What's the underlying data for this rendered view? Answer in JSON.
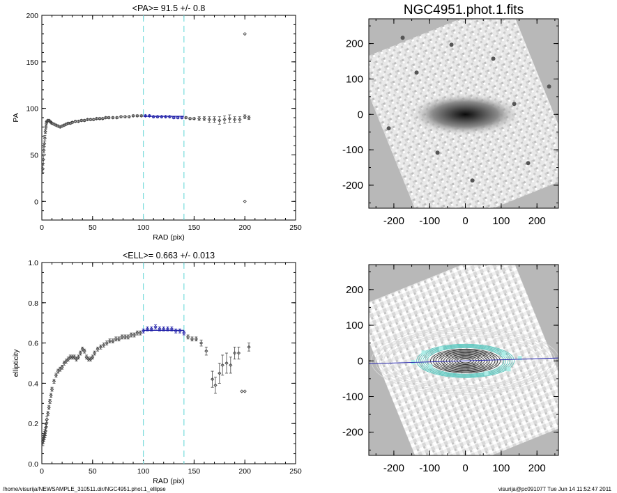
{
  "chart_data": [
    {
      "type": "scatter",
      "title": "<PA>=  91.5 +/-   0.8",
      "xlabel": "RAD (pix)",
      "ylabel": "PA",
      "xlim": [
        0,
        250
      ],
      "ylim": [
        -20,
        200
      ],
      "xticks": [
        0,
        50,
        100,
        150,
        200,
        250
      ],
      "yticks": [
        0,
        50,
        100,
        150,
        200
      ],
      "vlines": [
        100,
        140
      ],
      "fit_line": {
        "x": [
          100,
          140
        ],
        "y": [
          91.5,
          91.5
        ]
      },
      "series": [
        {
          "x": [
            1,
            1.5,
            2,
            2.5,
            3,
            3.5,
            4,
            4.5,
            5,
            6,
            7,
            8,
            9,
            10,
            12,
            14,
            16,
            18,
            20,
            22,
            24,
            26,
            28,
            30,
            33,
            36,
            39,
            42,
            45,
            48,
            51,
            54,
            57,
            60,
            63,
            66,
            70,
            74,
            78,
            82,
            86,
            90,
            94,
            98,
            102,
            106,
            110,
            114,
            118,
            122,
            126,
            130,
            134,
            138,
            142,
            146,
            150,
            155,
            160,
            165,
            170,
            175,
            180,
            185,
            190,
            195,
            200,
            200,
            200,
            204
          ],
          "y": [
            35,
            45,
            55,
            62,
            68,
            75,
            80,
            84,
            86,
            87,
            87,
            86,
            85,
            84,
            83,
            82,
            81,
            80,
            81,
            82,
            83,
            84,
            84,
            85,
            86,
            86,
            87,
            87,
            88,
            88,
            88,
            89,
            89,
            89,
            90,
            90,
            90,
            90,
            91,
            91,
            91,
            92,
            92,
            92,
            92,
            92,
            91,
            91,
            91,
            91,
            91,
            90,
            90,
            90,
            90,
            89,
            89,
            89,
            89,
            88,
            88,
            87,
            88,
            89,
            88,
            88,
            91,
            180,
            0,
            90
          ],
          "err": [
            4,
            4,
            3,
            3,
            3,
            2,
            2,
            2,
            1,
            1,
            1,
            1,
            1,
            1,
            1,
            1,
            1,
            1,
            1,
            1,
            1,
            1,
            1,
            1,
            1,
            1,
            1,
            1,
            1,
            1,
            1,
            1,
            1,
            1,
            1,
            1,
            1,
            1,
            1,
            1,
            1,
            1,
            1,
            1,
            1,
            1,
            1,
            1,
            1,
            1,
            1,
            1,
            1,
            1,
            1,
            1,
            1,
            2,
            2,
            3,
            3,
            4,
            4,
            4,
            3,
            3,
            2,
            0,
            0,
            2
          ]
        }
      ]
    },
    {
      "type": "scatter",
      "title": "<ELL>= 0.663 +/-  0.013",
      "xlabel": "RAD (pix)",
      "ylabel": "ellipticity",
      "xlim": [
        0,
        250
      ],
      "ylim": [
        0,
        1
      ],
      "xticks": [
        0,
        50,
        100,
        150,
        200,
        250
      ],
      "yticks": [
        "0.0",
        "0.2",
        "0.4",
        "0.6",
        "0.8",
        "1.0"
      ],
      "vlines": [
        100,
        140
      ],
      "fit_line": {
        "x": [
          100,
          140
        ],
        "y": [
          0.663,
          0.663
        ]
      },
      "series": [
        {
          "x": [
            1,
            1.5,
            2,
            2.5,
            3,
            3.5,
            4,
            4.5,
            5,
            6,
            7,
            8,
            9,
            10,
            12,
            14,
            16,
            18,
            20,
            22,
            24,
            26,
            28,
            30,
            32,
            34,
            36,
            38,
            40,
            42,
            44,
            46,
            48,
            50,
            52,
            55,
            58,
            61,
            64,
            67,
            70,
            73,
            76,
            79,
            82,
            85,
            88,
            91,
            94,
            97,
            100,
            104,
            108,
            112,
            116,
            120,
            124,
            128,
            132,
            136,
            140,
            144,
            148,
            152,
            157,
            162,
            168,
            171,
            175,
            178,
            182,
            186,
            190,
            194,
            197,
            200,
            204
          ],
          "y": [
            0.11,
            0.12,
            0.13,
            0.14,
            0.15,
            0.16,
            0.18,
            0.2,
            0.22,
            0.25,
            0.28,
            0.31,
            0.34,
            0.37,
            0.41,
            0.44,
            0.46,
            0.47,
            0.48,
            0.5,
            0.51,
            0.52,
            0.53,
            0.53,
            0.53,
            0.52,
            0.53,
            0.55,
            0.57,
            0.56,
            0.53,
            0.52,
            0.52,
            0.53,
            0.55,
            0.57,
            0.58,
            0.59,
            0.6,
            0.61,
            0.61,
            0.62,
            0.62,
            0.63,
            0.63,
            0.63,
            0.64,
            0.64,
            0.65,
            0.65,
            0.66,
            0.67,
            0.67,
            0.68,
            0.67,
            0.67,
            0.67,
            0.67,
            0.66,
            0.66,
            0.65,
            0.63,
            0.62,
            0.62,
            0.6,
            0.56,
            0.42,
            0.39,
            0.45,
            0.49,
            0.5,
            0.49,
            0.55,
            0.55,
            0.36,
            0.36,
            0.58
          ],
          "err": [
            0.02,
            0.02,
            0.02,
            0.02,
            0.02,
            0.02,
            0.015,
            0.015,
            0.015,
            0.01,
            0.01,
            0.01,
            0.01,
            0.01,
            0.01,
            0.01,
            0.01,
            0.01,
            0.01,
            0.01,
            0.01,
            0.01,
            0.01,
            0.01,
            0.01,
            0.01,
            0.01,
            0.01,
            0.01,
            0.01,
            0.01,
            0.01,
            0.01,
            0.01,
            0.01,
            0.01,
            0.01,
            0.01,
            0.01,
            0.01,
            0.01,
            0.01,
            0.01,
            0.01,
            0.01,
            0.01,
            0.01,
            0.01,
            0.01,
            0.01,
            0.01,
            0.01,
            0.01,
            0.01,
            0.01,
            0.01,
            0.01,
            0.01,
            0.01,
            0.01,
            0.01,
            0.01,
            0.01,
            0.01,
            0.015,
            0.02,
            0.04,
            0.04,
            0.05,
            0.05,
            0.05,
            0.04,
            0.03,
            0.03,
            0.0,
            0.0,
            0.02
          ]
        }
      ]
    },
    {
      "type": "heatmap",
      "title": "NGC4951.phot.1.fits",
      "xlim": [
        -270,
        260
      ],
      "ylim": [
        -265,
        270
      ],
      "xticks": [
        -200,
        -100,
        0,
        100,
        200
      ],
      "yticks": [
        -200,
        -100,
        0,
        100,
        200
      ]
    },
    {
      "type": "heatmap",
      "title": "",
      "xlim": [
        -270,
        260
      ],
      "ylim": [
        -265,
        270
      ],
      "xticks": [
        -200,
        -100,
        0,
        100,
        200
      ],
      "yticks": [
        -200,
        -100,
        0,
        100,
        200
      ],
      "major_axis_line": {
        "x": [
          -270,
          260
        ],
        "y": [
          -8,
          8
        ]
      }
    }
  ],
  "colors": {
    "data_points": "#444444",
    "fit_line": "#1a1aa6",
    "vlines": "#78dcdc",
    "axis": "#000000",
    "image_bg": "#b8b8b8",
    "contour_cyan": "#5ec8c0",
    "contour_dark": "#222222",
    "major_axis": "#2a2ab0"
  },
  "footer": {
    "left": "/home/visurija/NEWSAMPLE_310511.dir/NGC4951.phot.1_ellipse",
    "right": "visurija@pc091077  Tue Jun 14 11:52:47 2011"
  }
}
